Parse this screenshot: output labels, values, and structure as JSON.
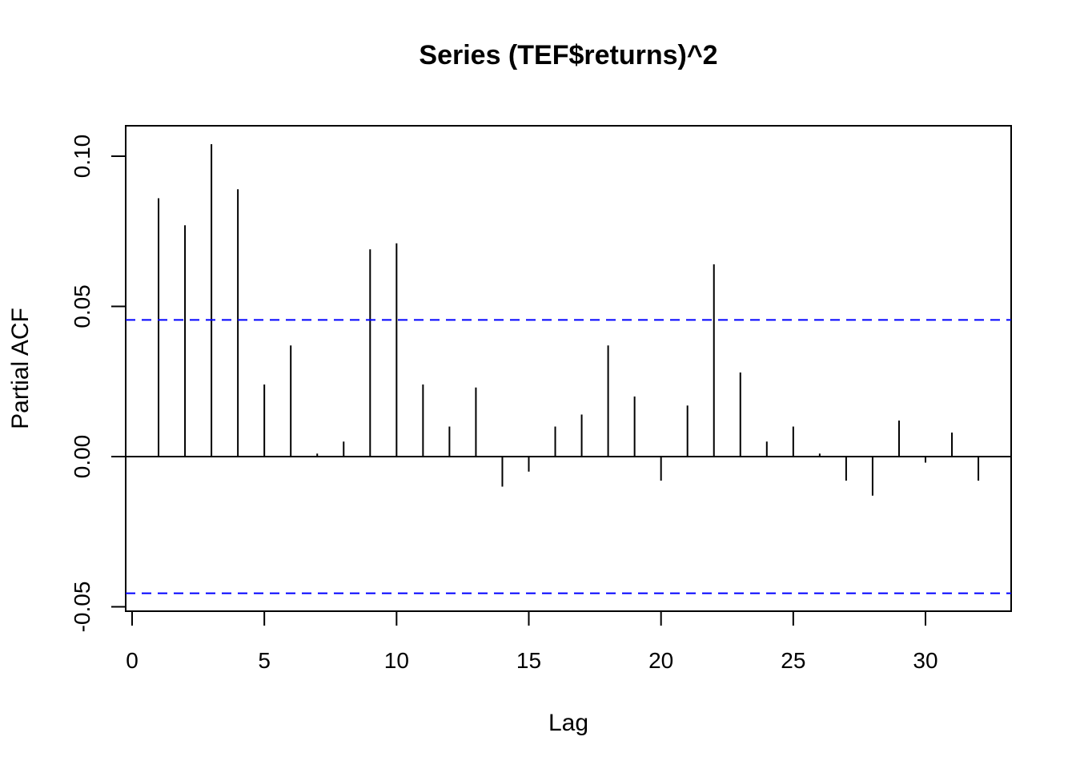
{
  "chart_data": {
    "type": "bar",
    "style": "spike",
    "title": "Series  (TEF$returns)^2",
    "xlabel": "Lag",
    "ylabel": "Partial ACF",
    "xlim": [
      0,
      33
    ],
    "ylim": [
      -0.05,
      0.1
    ],
    "x_ticks": [
      0,
      5,
      10,
      15,
      20,
      25,
      30
    ],
    "y_ticks": [
      "-0.05",
      "0.00",
      "0.05",
      "0.10"
    ],
    "lags": [
      1,
      2,
      3,
      4,
      5,
      6,
      7,
      8,
      9,
      10,
      11,
      12,
      13,
      14,
      15,
      16,
      17,
      18,
      19,
      20,
      21,
      22,
      23,
      24,
      25,
      26,
      27,
      28,
      29,
      30,
      31,
      32
    ],
    "values": [
      0.086,
      0.077,
      0.104,
      0.089,
      0.024,
      0.037,
      0.001,
      0.005,
      0.069,
      0.071,
      0.024,
      0.01,
      0.023,
      -0.01,
      -0.005,
      0.01,
      0.014,
      0.037,
      0.02,
      -0.008,
      0.017,
      0.064,
      0.028,
      0.005,
      0.01,
      0.001,
      -0.008,
      -0.013,
      0.012,
      -0.002,
      0.008,
      -0.008
    ],
    "confidence_bound": 0.0455,
    "colors": {
      "spike": "#000000",
      "confidence": "#0000ff",
      "zero_line": "#000000"
    },
    "grid": false,
    "legend": "none"
  }
}
